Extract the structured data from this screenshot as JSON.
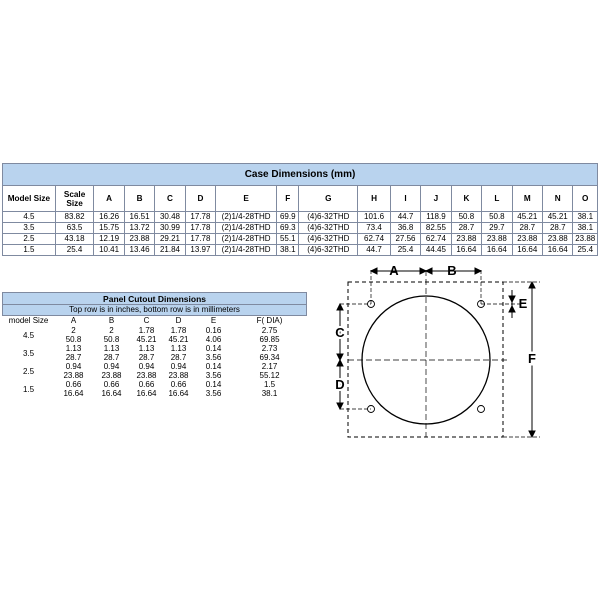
{
  "case_table": {
    "title": "Case Dimensions (mm)",
    "headers": [
      "Model Size",
      "Scale Size",
      "A",
      "B",
      "C",
      "D",
      "E",
      "F",
      "G",
      "H",
      "I",
      "J",
      "K",
      "L",
      "M",
      "N",
      "O"
    ],
    "rows": [
      [
        "4.5",
        "83.82",
        "16.26",
        "16.51",
        "30.48",
        "17.78",
        "(2)1/4-28THD",
        "69.9",
        "(4)6-32THD",
        "101.6",
        "44.7",
        "118.9",
        "50.8",
        "50.8",
        "45.21",
        "45.21",
        "38.1"
      ],
      [
        "3.5",
        "63.5",
        "15.75",
        "13.72",
        "30.99",
        "17.78",
        "(2)1/4-28THD",
        "69.3",
        "(4)6-32THD",
        "73.4",
        "36.8",
        "82.55",
        "28.7",
        "29.7",
        "28.7",
        "28.7",
        "38.1"
      ],
      [
        "2.5",
        "43.18",
        "12.19",
        "23.88",
        "29.21",
        "17.78",
        "(2)1/4-28THD",
        "55.1",
        "(4)6-32THD",
        "62.74",
        "27.56",
        "62.74",
        "23.88",
        "23.88",
        "23.88",
        "23.88",
        "23.88"
      ],
      [
        "1.5",
        "25.4",
        "10.41",
        "13.46",
        "21.84",
        "13.97",
        "(2)1/4-28THD",
        "38.1",
        "(4)6-32THD",
        "44.7",
        "25.4",
        "44.45",
        "16.64",
        "16.64",
        "16.64",
        "16.64",
        "25.4"
      ]
    ]
  },
  "panel_table": {
    "title": "Panel Cutout Dimensions",
    "subtitle": "Top row is in inches, bottom row is in millimeters",
    "headers": [
      "model Size",
      "A",
      "B",
      "C",
      "D",
      "E",
      "F( DIA)"
    ],
    "groups": [
      {
        "model": "4.5",
        "inches": [
          "2",
          "2",
          "1.78",
          "1.78",
          "0.16",
          "2.75"
        ],
        "mm": [
          "50.8",
          "50.8",
          "45.21",
          "45.21",
          "4.06",
          "69.85"
        ]
      },
      {
        "model": "3.5",
        "inches": [
          "1.13",
          "1.13",
          "1.13",
          "1.13",
          "0.14",
          "2.73"
        ],
        "mm": [
          "28.7",
          "28.7",
          "28.7",
          "28.7",
          "3.56",
          "69.34"
        ]
      },
      {
        "model": "2.5",
        "inches": [
          "0.94",
          "0.94",
          "0.94",
          "0.94",
          "0.14",
          "2.17"
        ],
        "mm": [
          "23.88",
          "23.88",
          "23.88",
          "23.88",
          "3.56",
          "55.12"
        ]
      },
      {
        "model": "1.5",
        "inches": [
          "0.66",
          "0.66",
          "0.66",
          "0.66",
          "0.14",
          "1.5"
        ],
        "mm": [
          "16.64",
          "16.64",
          "16.64",
          "16.64",
          "3.56",
          "38.1"
        ]
      }
    ]
  },
  "diagram": {
    "labels": {
      "a": "A",
      "b": "B",
      "c": "C",
      "d": "D",
      "e": "E",
      "f": "F"
    }
  }
}
